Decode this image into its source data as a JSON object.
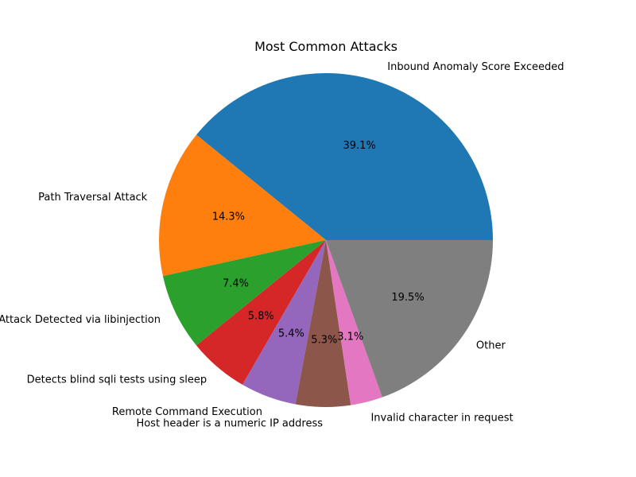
{
  "chart_data": {
    "type": "pie",
    "title": "Most Common Attacks",
    "labels": [
      "Inbound Anomaly Score Exceeded",
      "Path Traversal Attack",
      "SQL Injection Attack Detected via libinjection",
      "Detects blind sqli tests using sleep",
      "Remote Command Execution",
      "Host header is a numeric IP address",
      "Invalid character in request",
      "Other"
    ],
    "values": [
      39.1,
      14.3,
      7.4,
      5.8,
      5.4,
      5.3,
      3.1,
      19.5
    ],
    "percent_labels": [
      "39.1%",
      "14.3%",
      "7.4%",
      "5.8%",
      "5.4%",
      "5.3%",
      "3.1%",
      "19.5%"
    ],
    "colors": [
      "#1f77b4",
      "#ff7f0e",
      "#2ca02c",
      "#d62728",
      "#9467bd",
      "#8c564b",
      "#e377c2",
      "#7f7f7f"
    ],
    "start_angle": 0,
    "direction": "counterclockwise",
    "legend": "none"
  }
}
